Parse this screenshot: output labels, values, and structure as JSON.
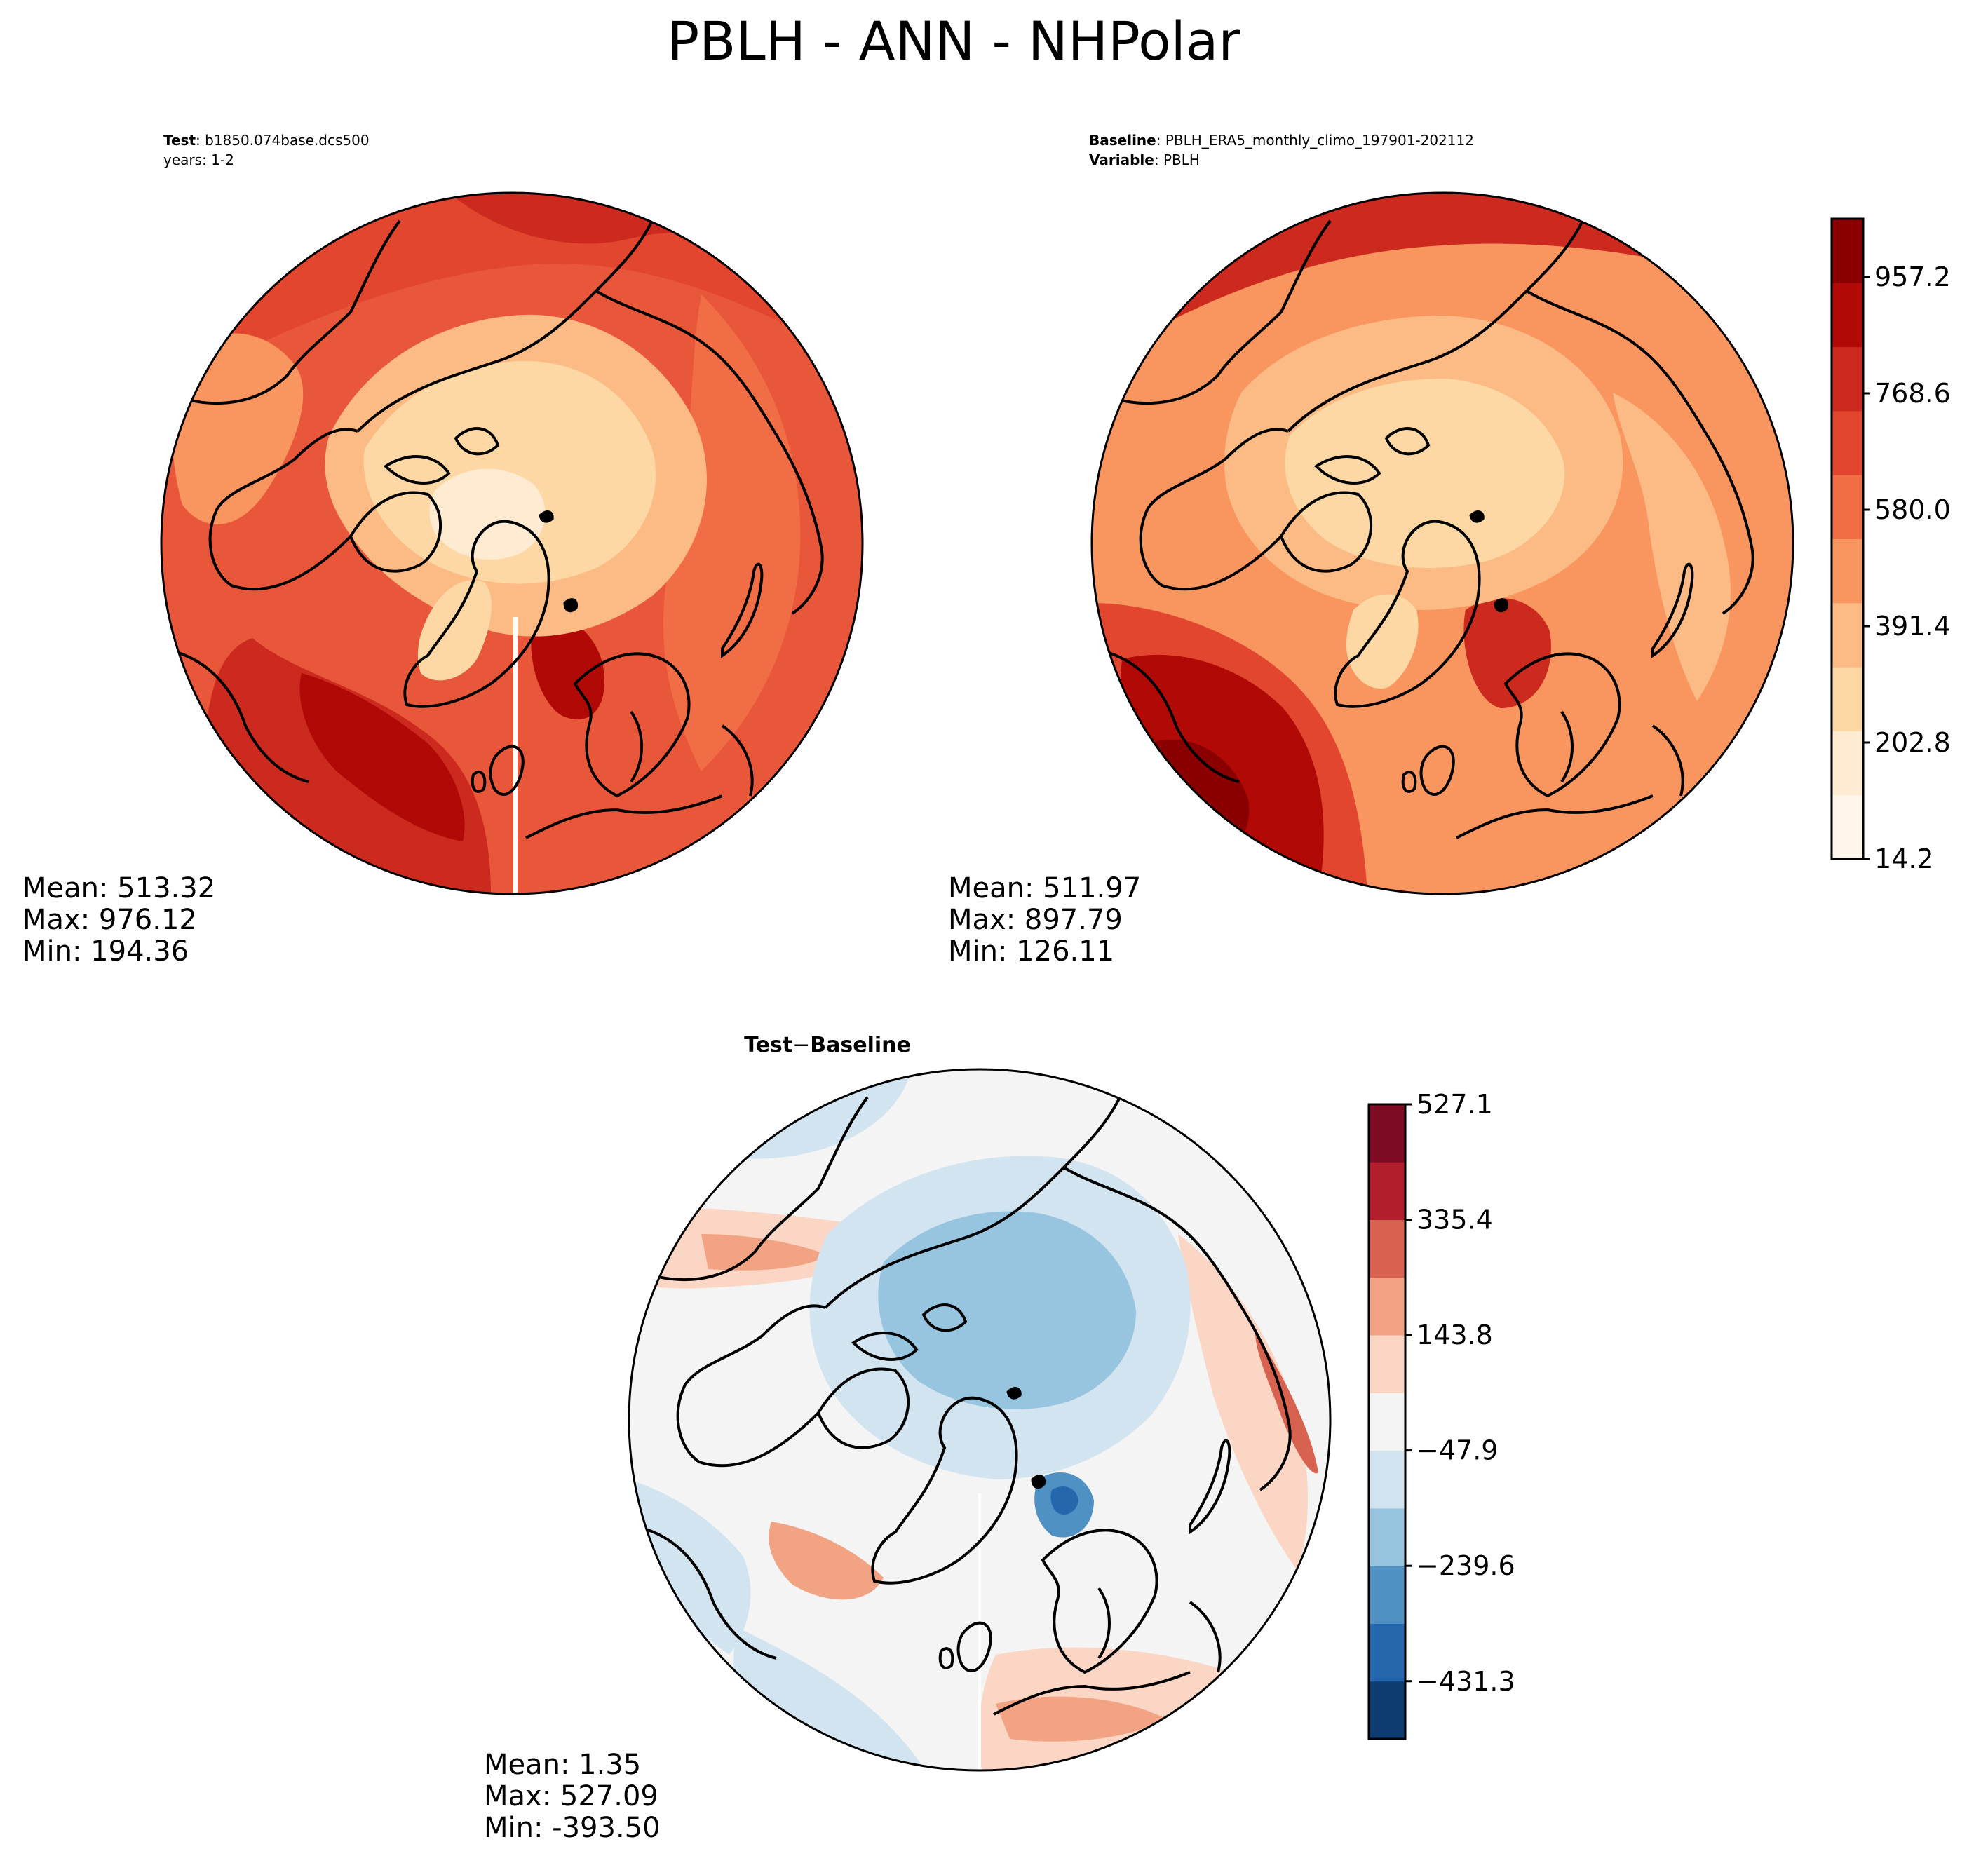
{
  "title": "PBLH - ANN - NHPolar",
  "test_panel": {
    "header_label": "Test",
    "header_value": "b1850.074base.dcs500",
    "years": "years: 1-2",
    "stats": {
      "mean": "Mean: 513.32",
      "max": "Max: 976.12",
      "min": "Min: 194.36"
    }
  },
  "baseline_panel": {
    "header_label": "Baseline",
    "header_value": "PBLH_ERA5_monthly_climo_197901-202112",
    "variable_label": "Variable",
    "variable_value": "PBLH",
    "stats": {
      "mean": "Mean: 511.97",
      "max": "Max: 897.79",
      "min": "Min: 126.11"
    }
  },
  "diff_panel": {
    "title_left": "Test",
    "title_op": "−",
    "title_right": "Baseline",
    "stats": {
      "mean": "Mean:  1.35",
      "max": "Max: 527.09",
      "min": "Min: -393.50"
    }
  },
  "colorbars": {
    "main": {
      "ticks": [
        "14.2",
        "202.8",
        "391.4",
        "580.0",
        "768.6",
        "957.2"
      ],
      "tick_values": [
        14.2,
        202.8,
        391.4,
        580.0,
        768.6,
        957.2
      ],
      "range": [
        14.2,
        1051.5
      ],
      "colors": [
        "#fff5eb",
        "#feebd1",
        "#fdd8a5",
        "#fcbb84",
        "#f9955f",
        "#f16d45",
        "#e2462f",
        "#cc2a1e",
        "#b10a06",
        "#8a0000"
      ]
    },
    "diff": {
      "ticks": [
        "527.1",
        "335.4",
        "143.8",
        "−47.9",
        "−239.6",
        "−431.3"
      ],
      "tick_values": [
        527.1,
        335.4,
        143.8,
        -47.9,
        -239.6,
        -431.3
      ],
      "range": [
        -527.1,
        527.1
      ],
      "colors": [
        "#0d3c72",
        "#2467ad",
        "#4f91c3",
        "#97c4df",
        "#d3e4f1",
        "#f4f4f4",
        "#fbd6c5",
        "#f2a383",
        "#d6624f",
        "#b21d2b",
        "#7e0b24"
      ]
    }
  },
  "map_colors": {
    "ocean_warm": "#e9573a",
    "ocean_deep": "#cc2a1e",
    "ocean_max": "#b10a06",
    "land_mid": "#f9955f",
    "arctic": "#fdd8a5",
    "arctic_pale": "#feebd1",
    "diff_neutral": "#f4f4f4",
    "diff_blue": "#d3e4f1",
    "diff_blue2": "#97c4df",
    "diff_red": "#fbd6c5",
    "diff_red2": "#f2a383"
  }
}
